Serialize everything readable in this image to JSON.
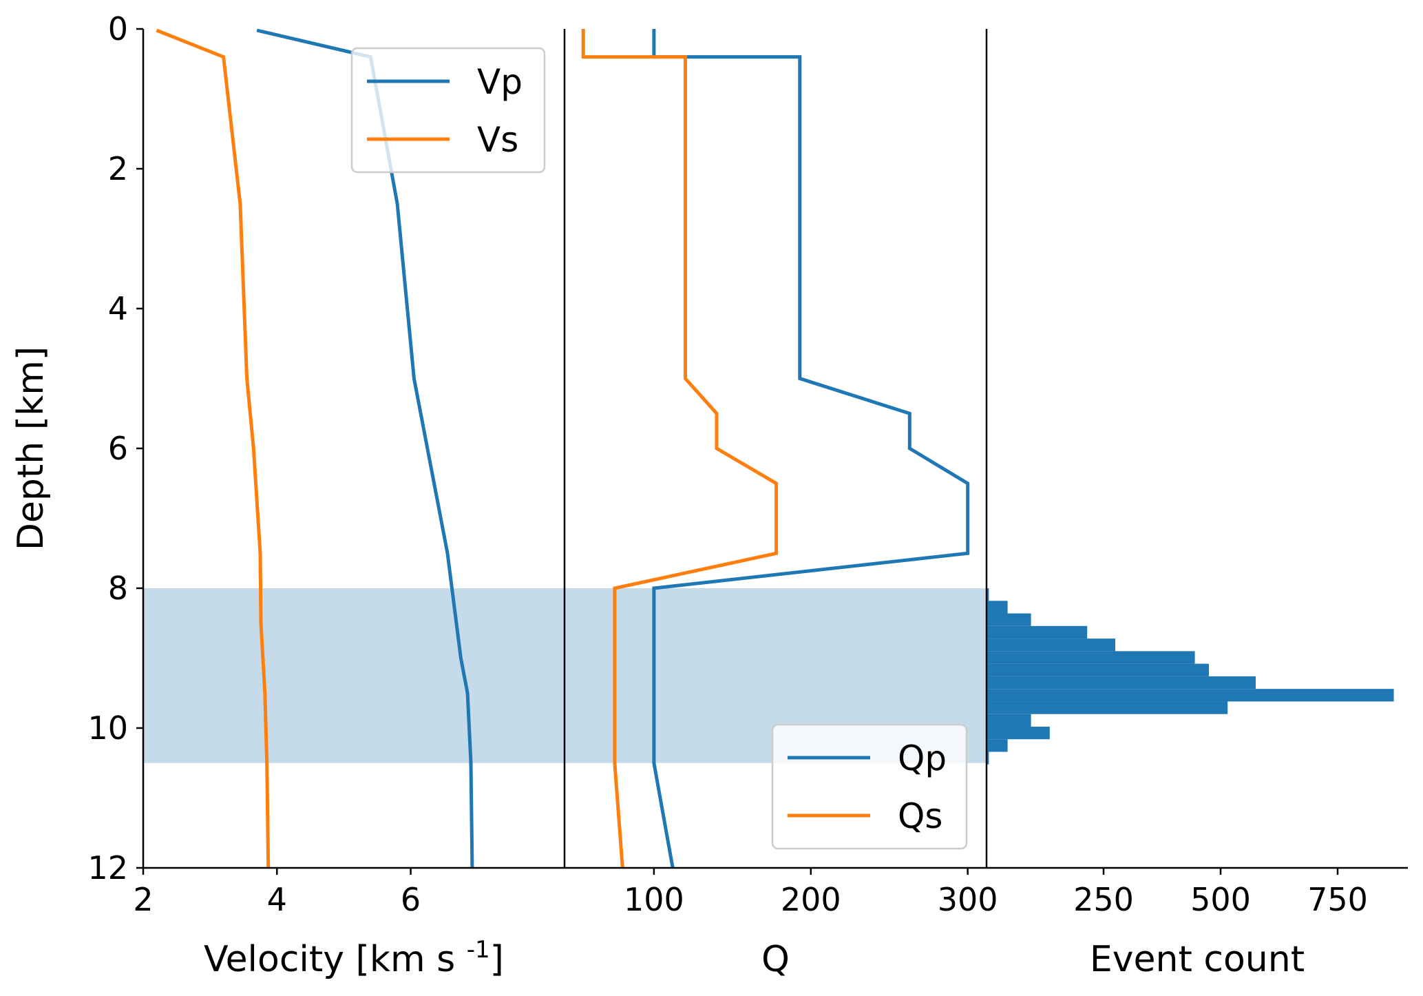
{
  "colors": {
    "blue": "#1f77b4",
    "orange": "#ff7f0e",
    "band": "#c6dbea",
    "axis": "#000000",
    "legend_border": "#cccccc"
  },
  "y_axis": {
    "label": "Depth [km]",
    "ylim": [
      0,
      12
    ],
    "ticks": [
      0,
      2,
      4,
      6,
      8,
      10,
      12
    ],
    "tick_labels": [
      "0",
      "2",
      "4",
      "6",
      "8",
      "10",
      "12"
    ],
    "inverted": true
  },
  "seismogenic_band": {
    "depth_top": 8,
    "depth_bottom": 10.5
  },
  "chart_data": [
    {
      "type": "line",
      "xlabel": "Velocity [km s",
      "xlabel_sup": "-1",
      "xlabel_suffix": "]",
      "xlim": [
        2,
        8.3
      ],
      "xticks": [
        2,
        4,
        6
      ],
      "xtick_labels": [
        "2",
        "4",
        "6"
      ],
      "legend": "upper-center",
      "series": [
        {
          "name": "Vp",
          "color": "#1f77b4",
          "points": [
            [
              3.7,
              0.02
            ],
            [
              5.4,
              0.4
            ],
            [
              5.8,
              2.5
            ],
            [
              6.05,
              5.0
            ],
            [
              6.55,
              7.5
            ],
            [
              6.75,
              9.0
            ],
            [
              6.85,
              9.5
            ],
            [
              6.9,
              10.5
            ],
            [
              6.92,
              12.0
            ]
          ]
        },
        {
          "name": "Vs",
          "color": "#ff7f0e",
          "points": [
            [
              2.2,
              0.02
            ],
            [
              3.2,
              0.4
            ],
            [
              3.45,
              2.5
            ],
            [
              3.55,
              5.0
            ],
            [
              3.65,
              6.0
            ],
            [
              3.75,
              7.5
            ],
            [
              3.76,
              8.5
            ],
            [
              3.82,
              9.5
            ],
            [
              3.85,
              10.5
            ],
            [
              3.87,
              12.0
            ]
          ]
        }
      ]
    },
    {
      "type": "line",
      "xlabel": "Q",
      "xlim": [
        43,
        312
      ],
      "xticks": [
        100,
        200,
        300
      ],
      "xtick_labels": [
        "100",
        "200",
        "300"
      ],
      "legend": "lower-right",
      "series": [
        {
          "name": "Qp",
          "color": "#1f77b4",
          "points": [
            [
              100,
              0.0
            ],
            [
              100,
              0.4
            ],
            [
              193,
              0.4
            ],
            [
              193,
              5.0
            ],
            [
              263,
              5.5
            ],
            [
              263,
              6.0
            ],
            [
              300,
              6.5
            ],
            [
              300,
              7.5
            ],
            [
              100,
              8.0
            ],
            [
              100,
              10.5
            ],
            [
              112,
              12.0
            ]
          ]
        },
        {
          "name": "Qs",
          "color": "#ff7f0e",
          "points": [
            [
              55,
              0.0
            ],
            [
              55,
              0.4
            ],
            [
              120,
              0.4
            ],
            [
              120,
              5.0
            ],
            [
              140,
              5.5
            ],
            [
              140,
              6.0
            ],
            [
              178,
              6.5
            ],
            [
              178,
              7.5
            ],
            [
              75,
              8.0
            ],
            [
              75,
              10.5
            ],
            [
              80,
              12.0
            ]
          ]
        }
      ]
    },
    {
      "type": "bar",
      "orientation": "horizontal",
      "xlabel": "Event count",
      "xlim": [
        0,
        900
      ],
      "xticks": [
        250,
        500,
        750
      ],
      "xtick_labels": [
        "250",
        "500",
        "750"
      ],
      "bin_width_km": 0.18,
      "bins_top_km": [
        8.0,
        8.18,
        8.36,
        8.54,
        8.72,
        8.9,
        9.08,
        9.26,
        9.44,
        9.62,
        9.8,
        9.98,
        10.16,
        10.34
      ],
      "counts": [
        5,
        45,
        95,
        215,
        275,
        445,
        475,
        575,
        870,
        515,
        95,
        135,
        45,
        5
      ],
      "color": "#1f77b4"
    }
  ]
}
